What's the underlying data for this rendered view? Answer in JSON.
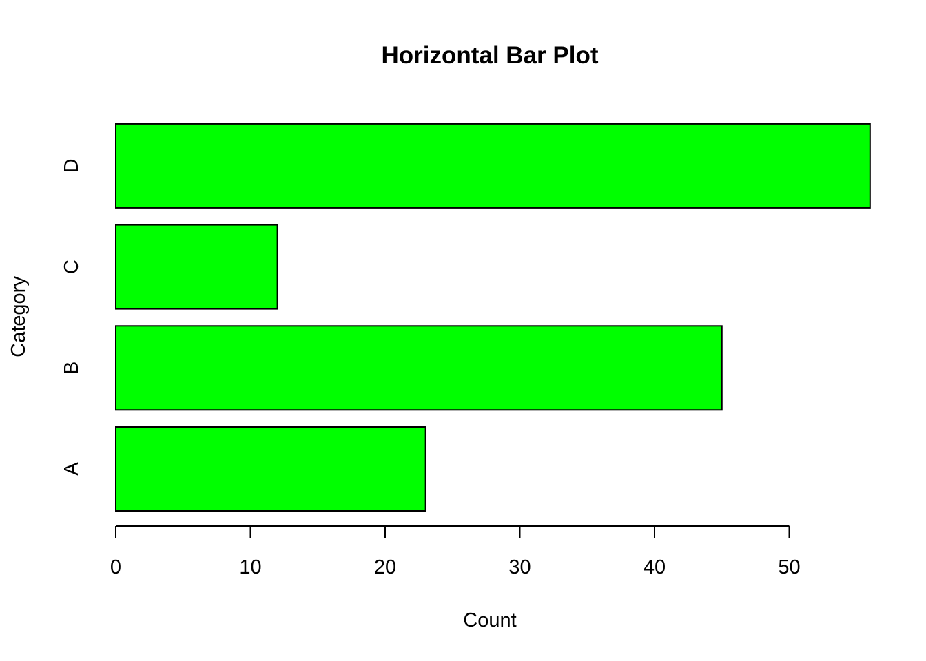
{
  "chart_data": {
    "type": "bar",
    "orientation": "horizontal",
    "title": "Horizontal Bar Plot",
    "xlabel": "Count",
    "ylabel": "Category",
    "categories": [
      "A",
      "B",
      "C",
      "D"
    ],
    "values": [
      23,
      45,
      12,
      56
    ],
    "xlim": [
      0,
      56
    ],
    "x_ticks": [
      0,
      10,
      20,
      30,
      40,
      50
    ],
    "x_tick_labels": [
      "0",
      "10",
      "20",
      "30",
      "40",
      "50"
    ],
    "bar_color": "#00ff00",
    "bar_edge_color": "#000000",
    "grid": false,
    "legend": "none"
  }
}
